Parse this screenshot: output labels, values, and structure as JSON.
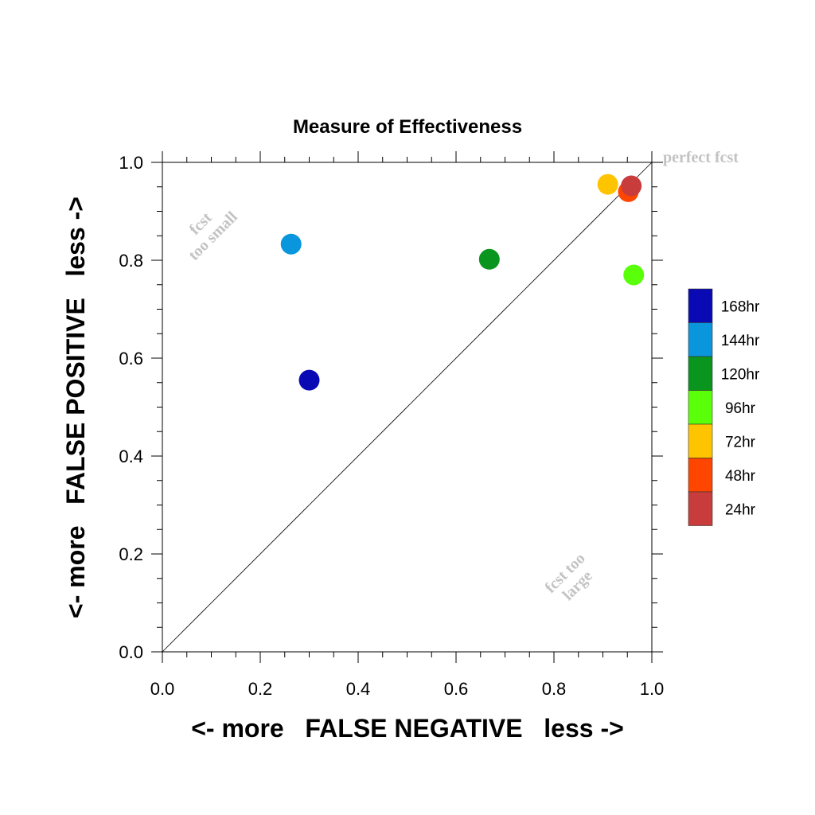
{
  "chart_data": {
    "type": "scatter",
    "title": "Measure of Effectiveness",
    "xlabel": "<- more   FALSE NEGATIVE   less ->",
    "ylabel": "<- more   FALSE POSITIVE   less ->",
    "xlim": [
      0,
      1
    ],
    "ylim": [
      0,
      1
    ],
    "xticks": [
      "0.0",
      "0.2",
      "0.4",
      "0.6",
      "0.8",
      "1.0"
    ],
    "yticks": [
      "0.0",
      "0.2",
      "0.4",
      "0.6",
      "0.8",
      "1.0"
    ],
    "diagonal": true,
    "annotations": {
      "perfect": "perfect fcst",
      "small_line1": "fcst",
      "small_line2": "too small",
      "large_line1": "fcst too",
      "large_line2": "large"
    },
    "series": [
      {
        "name": "168hr",
        "color": "#0a0ab4",
        "x": 0.3,
        "y": 0.555
      },
      {
        "name": "144hr",
        "color": "#0a96dc",
        "x": 0.263,
        "y": 0.833
      },
      {
        "name": "120hr",
        "color": "#0a961e",
        "x": 0.668,
        "y": 0.802
      },
      {
        "name": "96hr",
        "color": "#5aff0a",
        "x": 0.963,
        "y": 0.77
      },
      {
        "name": "72hr",
        "color": "#ffc400",
        "x": 0.91,
        "y": 0.955
      },
      {
        "name": "48hr",
        "color": "#ff4600",
        "x": 0.952,
        "y": 0.94
      },
      {
        "name": "24hr",
        "color": "#c83c3c",
        "x": 0.958,
        "y": 0.952
      }
    ],
    "legend_placement": "right"
  }
}
